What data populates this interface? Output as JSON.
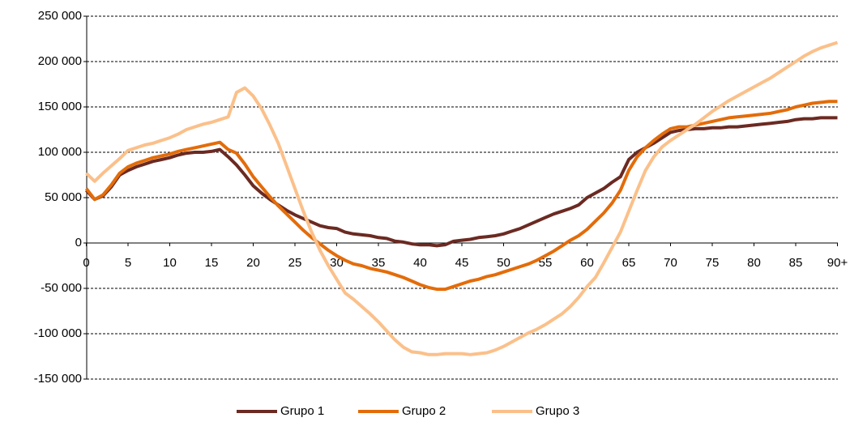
{
  "chart_data": {
    "type": "line",
    "x": [
      0,
      1,
      2,
      3,
      4,
      5,
      6,
      7,
      8,
      9,
      10,
      11,
      12,
      13,
      14,
      15,
      16,
      17,
      18,
      19,
      20,
      21,
      22,
      23,
      24,
      25,
      26,
      27,
      28,
      29,
      30,
      31,
      32,
      33,
      34,
      35,
      36,
      37,
      38,
      39,
      40,
      41,
      42,
      43,
      44,
      45,
      46,
      47,
      48,
      49,
      50,
      51,
      52,
      53,
      54,
      55,
      56,
      57,
      58,
      59,
      60,
      61,
      62,
      63,
      64,
      65,
      66,
      67,
      68,
      69,
      70,
      71,
      72,
      73,
      74,
      75,
      76,
      77,
      78,
      79,
      80,
      81,
      82,
      83,
      84,
      85,
      86,
      87,
      88,
      89,
      90
    ],
    "series": [
      {
        "name": "Grupo 1",
        "color": "#6b2a22",
        "values": [
          58000,
          48000,
          52000,
          62000,
          75000,
          80000,
          84000,
          87000,
          90000,
          92000,
          94000,
          97000,
          99000,
          100000,
          100000,
          101000,
          103000,
          95000,
          86000,
          75000,
          63000,
          55000,
          48000,
          42000,
          36000,
          31000,
          27000,
          23000,
          19000,
          17000,
          16000,
          12000,
          10000,
          9000,
          8000,
          6000,
          5000,
          2000,
          1000,
          -1000,
          -2000,
          -2000,
          -3000,
          -2000,
          2000,
          3000,
          4000,
          6000,
          7000,
          8000,
          10000,
          13000,
          16000,
          20000,
          24000,
          28000,
          32000,
          35000,
          38000,
          42000,
          50000,
          55000,
          60000,
          67000,
          73000,
          92000,
          100000,
          105000,
          110000,
          116000,
          122000,
          124000,
          125000,
          126000,
          126000,
          127000,
          127000,
          128000,
          128000,
          129000,
          130000,
          131000,
          132000,
          133000,
          134000,
          136000,
          137000,
          137000,
          138000,
          138000,
          138000
        ]
      },
      {
        "name": "Grupo 2",
        "color": "#e36c0a",
        "values": [
          60000,
          48000,
          53000,
          64000,
          77000,
          84000,
          88000,
          91000,
          94000,
          96000,
          98000,
          101000,
          103000,
          105000,
          107000,
          109000,
          111000,
          103000,
          99000,
          87000,
          73000,
          62000,
          51000,
          41000,
          32000,
          23000,
          14000,
          6000,
          -1000,
          -8000,
          -14000,
          -19000,
          -23000,
          -25000,
          -28000,
          -30000,
          -32000,
          -35000,
          -38000,
          -42000,
          -46000,
          -49000,
          -51000,
          -51000,
          -48000,
          -45000,
          -42000,
          -40000,
          -37000,
          -35000,
          -32000,
          -29000,
          -26000,
          -23000,
          -19000,
          -14000,
          -9000,
          -3000,
          3000,
          8000,
          15000,
          24000,
          33000,
          44000,
          58000,
          80000,
          95000,
          105000,
          113000,
          120000,
          126000,
          128000,
          128000,
          130000,
          132000,
          134000,
          136000,
          138000,
          139000,
          140000,
          141000,
          142000,
          143000,
          145000,
          147000,
          150000,
          152000,
          154000,
          155000,
          156000,
          156000
        ]
      },
      {
        "name": "Grupo 3",
        "color": "#fbc08a",
        "values": [
          77000,
          68000,
          77000,
          85000,
          93000,
          102000,
          105000,
          108000,
          110000,
          113000,
          116000,
          120000,
          125000,
          128000,
          131000,
          133000,
          136000,
          139000,
          166000,
          171000,
          162000,
          148000,
          130000,
          110000,
          85000,
          60000,
          35000,
          12000,
          -8000,
          -25000,
          -40000,
          -55000,
          -62000,
          -70000,
          -78000,
          -87000,
          -97000,
          -107000,
          -115000,
          -120000,
          -121000,
          -123000,
          -123000,
          -122000,
          -122000,
          -122000,
          -123000,
          -122000,
          -121000,
          -118000,
          -114000,
          -109000,
          -104000,
          -99000,
          -95000,
          -90000,
          -84000,
          -78000,
          -70000,
          -60000,
          -48000,
          -38000,
          -22000,
          -5000,
          12000,
          35000,
          58000,
          80000,
          95000,
          106000,
          113000,
          119000,
          125000,
          131000,
          138000,
          145000,
          151000,
          157000,
          162000,
          167000,
          172000,
          177000,
          182000,
          188000,
          194000,
          200000,
          206000,
          211000,
          215000,
          218000,
          221000
        ]
      }
    ],
    "xlim": [
      0,
      90
    ],
    "xticks": [
      0,
      5,
      10,
      15,
      20,
      25,
      30,
      35,
      40,
      45,
      50,
      55,
      60,
      65,
      70,
      75,
      80,
      85,
      {
        "value": 90,
        "label": "90+"
      }
    ],
    "ylim": [
      -150000,
      250000
    ],
    "yticks": [
      {
        "value": -150000,
        "label": "-150 000"
      },
      {
        "value": -100000,
        "label": "-100 000"
      },
      {
        "value": -50000,
        "label": "-50 000"
      },
      0,
      {
        "value": 50000,
        "label": "50 000"
      },
      {
        "value": 100000,
        "label": "100 000"
      },
      {
        "value": 150000,
        "label": "150 000"
      },
      {
        "value": 200000,
        "label": "200 000"
      },
      {
        "value": 250000,
        "label": "250 000"
      }
    ],
    "grid": true
  }
}
